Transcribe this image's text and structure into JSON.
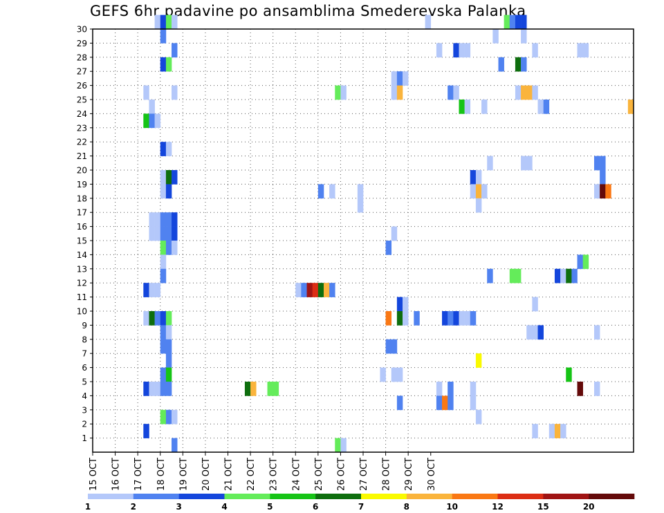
{
  "chart_data": {
    "type": "heatmap",
    "title": "GEFS 6hr padavine po ansamblima Smederevska Palanka",
    "xlabel": "",
    "ylabel": "",
    "x_tick_labels": [
      "15 OCT",
      "16 OCT",
      "17 OCT",
      "18 OCT",
      "19 OCT",
      "20 OCT",
      "21 OCT",
      "22 OCT",
      "23 OCT",
      "24 OCT",
      "25 OCT",
      "26 OCT",
      "27 OCT",
      "28 OCT",
      "29 OCT",
      "30 OCT"
    ],
    "y_tick_labels": [
      "1",
      "2",
      "3",
      "4",
      "5",
      "6",
      "7",
      "8",
      "9",
      "10",
      "11",
      "12",
      "13",
      "14",
      "15",
      "16",
      "17",
      "18",
      "19",
      "20",
      "21",
      "22",
      "23",
      "24",
      "25",
      "26",
      "27",
      "28",
      "29",
      "30"
    ],
    "grid": true,
    "legend": {
      "placement": "bottom",
      "labels": [
        "1",
        "2",
        "3",
        "4",
        "5",
        "6",
        "7",
        "8",
        "10",
        "12",
        "15",
        "20"
      ],
      "colors": [
        "#b4c8fa",
        "#5082f0",
        "#1446dc",
        "#64ec5a",
        "#16c416",
        "#0e6e0e",
        "#fafa00",
        "#fab43c",
        "#fa7814",
        "#dc2d14",
        "#a01414",
        "#640a0a"
      ]
    },
    "members": [
      {
        "m": 30,
        "cells": [
          [
            11,
            1
          ],
          [
            12,
            3
          ],
          [
            13,
            4
          ],
          [
            14,
            1
          ],
          [
            59,
            1
          ],
          [
            73,
            4
          ],
          [
            74,
            2
          ],
          [
            75,
            3
          ],
          [
            76,
            3
          ]
        ]
      },
      {
        "m": 29,
        "cells": [
          [
            12,
            2
          ],
          [
            71,
            1
          ],
          [
            76,
            1
          ]
        ]
      },
      {
        "m": 28,
        "cells": [
          [
            14,
            2
          ],
          [
            61,
            1
          ],
          [
            64,
            3
          ],
          [
            65,
            1
          ],
          [
            66,
            1
          ],
          [
            78,
            1
          ],
          [
            86,
            1
          ],
          [
            87,
            1
          ]
        ]
      },
      {
        "m": 27,
        "cells": [
          [
            12,
            3
          ],
          [
            13,
            4
          ],
          [
            72,
            2
          ],
          [
            75,
            6
          ],
          [
            76,
            2
          ]
        ]
      },
      {
        "m": 26,
        "cells": [
          [
            53,
            1
          ],
          [
            54,
            2
          ],
          [
            55,
            1
          ]
        ]
      },
      {
        "m": 25,
        "cells": [
          [
            9,
            1
          ],
          [
            14,
            1
          ],
          [
            43,
            4
          ],
          [
            44,
            1
          ],
          [
            53,
            1
          ],
          [
            54,
            8
          ],
          [
            63,
            2
          ],
          [
            64,
            1
          ],
          [
            75,
            1
          ],
          [
            76,
            8
          ],
          [
            77,
            8
          ],
          [
            78,
            1
          ]
        ]
      },
      {
        "m": 24,
        "cells": [
          [
            10,
            1
          ],
          [
            65,
            5
          ],
          [
            66,
            1
          ],
          [
            69,
            1
          ],
          [
            79,
            1
          ],
          [
            80,
            2
          ],
          [
            95,
            8
          ]
        ]
      },
      {
        "m": 23,
        "cells": [
          [
            9,
            5
          ],
          [
            10,
            2
          ],
          [
            11,
            1
          ]
        ]
      },
      {
        "m": 21,
        "cells": [
          [
            12,
            3
          ],
          [
            13,
            1
          ]
        ]
      },
      {
        "m": 20,
        "cells": [
          [
            70,
            1
          ],
          [
            76,
            1
          ],
          [
            77,
            1
          ],
          [
            89,
            2
          ],
          [
            90,
            2
          ]
        ]
      },
      {
        "m": 19,
        "cells": [
          [
            12,
            1
          ],
          [
            13,
            6
          ],
          [
            14,
            3
          ],
          [
            67,
            3
          ],
          [
            68,
            1
          ],
          [
            90,
            2
          ]
        ]
      },
      {
        "m": 18,
        "cells": [
          [
            12,
            1
          ],
          [
            13,
            3
          ],
          [
            40,
            2
          ],
          [
            42,
            1
          ],
          [
            47,
            1
          ],
          [
            67,
            1
          ],
          [
            68,
            8
          ],
          [
            69,
            1
          ],
          [
            89,
            1
          ],
          [
            90,
            12
          ],
          [
            91,
            9
          ]
        ]
      },
      {
        "m": 17,
        "cells": [
          [
            47,
            1
          ],
          [
            68,
            1
          ]
        ]
      },
      {
        "m": 16,
        "cells": [
          [
            10,
            1
          ],
          [
            11,
            1
          ],
          [
            12,
            2
          ],
          [
            13,
            2
          ],
          [
            14,
            3
          ]
        ]
      },
      {
        "m": 15,
        "cells": [
          [
            10,
            1
          ],
          [
            11,
            1
          ],
          [
            12,
            2
          ],
          [
            13,
            2
          ],
          [
            14,
            3
          ],
          [
            53,
            1
          ]
        ]
      },
      {
        "m": 14,
        "cells": [
          [
            12,
            4
          ],
          [
            13,
            2
          ],
          [
            14,
            1
          ],
          [
            52,
            2
          ]
        ]
      },
      {
        "m": 13,
        "cells": [
          [
            12,
            1
          ],
          [
            86,
            2
          ],
          [
            87,
            4
          ]
        ]
      },
      {
        "m": 12,
        "cells": [
          [
            12,
            2
          ],
          [
            70,
            2
          ],
          [
            74,
            4
          ],
          [
            75,
            4
          ],
          [
            82,
            3
          ],
          [
            83,
            1
          ],
          [
            84,
            6
          ],
          [
            85,
            2
          ]
        ]
      },
      {
        "m": 11,
        "cells": [
          [
            9,
            3
          ],
          [
            10,
            1
          ],
          [
            11,
            1
          ],
          [
            36,
            1
          ],
          [
            37,
            2
          ],
          [
            38,
            11
          ],
          [
            39,
            10
          ],
          [
            40,
            6
          ],
          [
            41,
            8
          ],
          [
            42,
            2
          ]
        ]
      },
      {
        "m": 10,
        "cells": [
          [
            54,
            3
          ],
          [
            55,
            1
          ],
          [
            78,
            1
          ]
        ]
      },
      {
        "m": 9,
        "cells": [
          [
            9,
            1
          ],
          [
            10,
            6
          ],
          [
            11,
            2
          ],
          [
            12,
            3
          ],
          [
            13,
            4
          ],
          [
            52,
            9
          ],
          [
            54,
            6
          ],
          [
            55,
            1
          ],
          [
            57,
            2
          ],
          [
            62,
            3
          ],
          [
            63,
            2
          ],
          [
            64,
            3
          ],
          [
            65,
            1
          ],
          [
            66,
            1
          ],
          [
            67,
            2
          ]
        ]
      },
      {
        "m": 8,
        "cells": [
          [
            12,
            2
          ],
          [
            13,
            1
          ],
          [
            77,
            1
          ],
          [
            78,
            1
          ],
          [
            79,
            3
          ],
          [
            89,
            1
          ]
        ]
      },
      {
        "m": 7,
        "cells": [
          [
            12,
            2
          ],
          [
            13,
            2
          ],
          [
            52,
            2
          ],
          [
            53,
            2
          ]
        ]
      },
      {
        "m": 6,
        "cells": [
          [
            13,
            2
          ],
          [
            68,
            7
          ]
        ]
      },
      {
        "m": 5,
        "cells": [
          [
            12,
            2
          ],
          [
            13,
            5
          ],
          [
            51,
            1
          ],
          [
            53,
            1
          ],
          [
            54,
            1
          ],
          [
            84,
            5
          ]
        ]
      },
      {
        "m": 4,
        "cells": [
          [
            9,
            3
          ],
          [
            10,
            1
          ],
          [
            11,
            1
          ],
          [
            12,
            2
          ],
          [
            13,
            2
          ],
          [
            27,
            6
          ],
          [
            28,
            8
          ],
          [
            31,
            4
          ],
          [
            32,
            4
          ],
          [
            61,
            1
          ],
          [
            63,
            2
          ],
          [
            67,
            1
          ],
          [
            86,
            12
          ],
          [
            89,
            1
          ]
        ]
      },
      {
        "m": 3,
        "cells": [
          [
            54,
            2
          ],
          [
            61,
            2
          ],
          [
            62,
            9
          ],
          [
            63,
            2
          ],
          [
            67,
            1
          ]
        ]
      },
      {
        "m": 2,
        "cells": [
          [
            12,
            4
          ],
          [
            13,
            2
          ],
          [
            14,
            1
          ],
          [
            68,
            1
          ]
        ]
      },
      {
        "m": 1,
        "cells": [
          [
            9,
            3
          ],
          [
            78,
            1
          ],
          [
            81,
            1
          ],
          [
            82,
            8
          ],
          [
            83,
            1
          ]
        ]
      },
      {
        "m": 0,
        "cells": [
          [
            14,
            2
          ],
          [
            43,
            4
          ],
          [
            44,
            1
          ]
        ]
      }
    ]
  }
}
